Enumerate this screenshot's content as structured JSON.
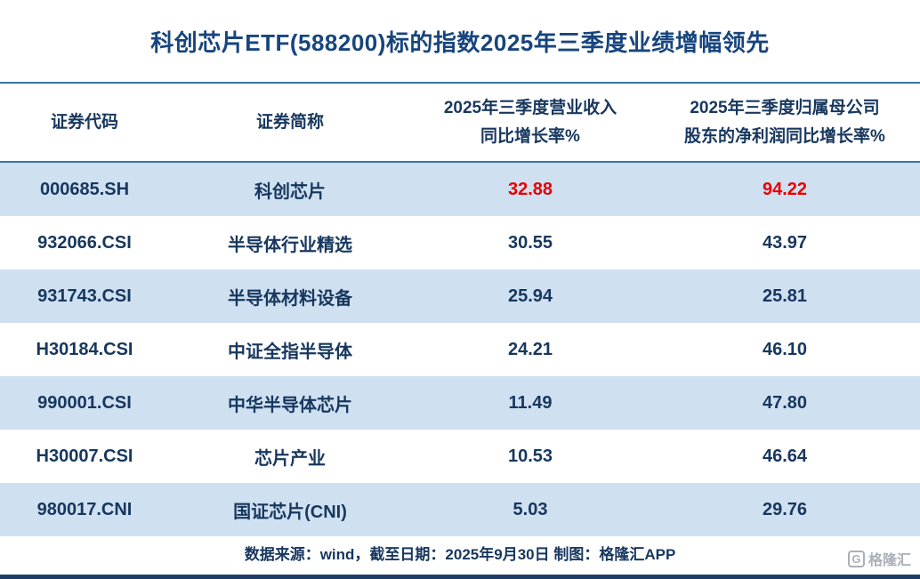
{
  "title": "科创芯片ETF(588200)标的指数2025年三季度业绩增幅领先",
  "table": {
    "headers": [
      {
        "lines": [
          "证券代码"
        ]
      },
      {
        "lines": [
          "证券简称"
        ]
      },
      {
        "lines": [
          "2025年三季度营业收入",
          "同比增长率%"
        ]
      },
      {
        "lines": [
          "2025年三季度归属母公司",
          "股东的净利润同比增长率%"
        ]
      }
    ],
    "rows": [
      {
        "cells": [
          "000685.SH",
          "科创芯片",
          "32.88",
          "94.22"
        ],
        "highlight": true
      },
      {
        "cells": [
          "932066.CSI",
          "半导体行业精选",
          "30.55",
          "43.97"
        ],
        "highlight": false
      },
      {
        "cells": [
          "931743.CSI",
          "半导体材料设备",
          "25.94",
          "25.81"
        ],
        "highlight": false
      },
      {
        "cells": [
          "H30184.CSI",
          "中证全指半导体",
          "24.21",
          "46.10"
        ],
        "highlight": false
      },
      {
        "cells": [
          "990001.CSI",
          "中华半导体芯片",
          "11.49",
          "47.80"
        ],
        "highlight": false
      },
      {
        "cells": [
          "H30007.CSI",
          "芯片产业",
          "10.53",
          "46.64"
        ],
        "highlight": false
      },
      {
        "cells": [
          "980017.CNI",
          "国证芯片(CNI)",
          "5.03",
          "29.76"
        ],
        "highlight": false
      }
    ]
  },
  "footer": {
    "note": "数据来源：wind，截至日期：2025年9月30日 制图：格隆汇APP"
  },
  "watermark": {
    "logo_letter": "G",
    "text": "格隆汇"
  },
  "colors": {
    "accent_navy": "#17375e",
    "title_blue": "#17457e",
    "row_alt_blue": "#cfe0f1",
    "divider_blue": "#3a74ae",
    "highlight_red": "#e60000",
    "bottom_bar_navy": "#1f3c68",
    "watermark_gray": "#a9b0b8"
  },
  "chart_data": {
    "type": "table",
    "title": "科创芯片ETF(588200)标的指数2025年三季度业绩增幅领先",
    "columns": [
      "证券代码",
      "证券简称",
      "2025年三季度营业收入同比增长率%",
      "2025年三季度归属母公司股东的净利润同比增长率%"
    ],
    "rows": [
      [
        "000685.SH",
        "科创芯片",
        32.88,
        94.22
      ],
      [
        "932066.CSI",
        "半导体行业精选",
        30.55,
        43.97
      ],
      [
        "931743.CSI",
        "半导体材料设备",
        25.94,
        25.81
      ],
      [
        "H30184.CSI",
        "中证全指半导体",
        24.21,
        46.1
      ],
      [
        "990001.CSI",
        "中华半导体芯片",
        11.49,
        47.8
      ],
      [
        "H30007.CSI",
        "芯片产业",
        10.53,
        46.64
      ],
      [
        "980017.CNI",
        "国证芯片(CNI)",
        5.03,
        29.76
      ]
    ],
    "source_note": "数据来源：wind，截至日期：2025年9月30日 制图：格隆汇APP",
    "highlighted_row": "000685.SH 科创芯片 (values shown in red)"
  }
}
